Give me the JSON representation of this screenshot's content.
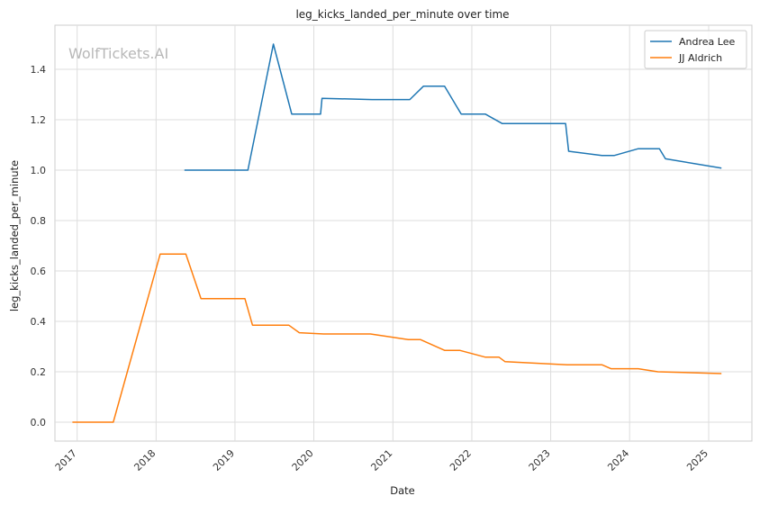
{
  "watermark": "WolfTickets.AI",
  "chart_data": {
    "type": "line",
    "title": "leg_kicks_landed_per_minute over time",
    "xlabel": "Date",
    "ylabel": "leg_kicks_landed_per_minute",
    "x_ticks": [
      "2017",
      "2018",
      "2019",
      "2020",
      "2021",
      "2022",
      "2023",
      "2024",
      "2025"
    ],
    "y_ticks": [
      "0.0",
      "0.2",
      "0.4",
      "0.6",
      "0.8",
      "1.0",
      "1.2",
      "1.4"
    ],
    "xlim": [
      "2016-09-20",
      "2025-07-20"
    ],
    "ylim": [
      -0.075,
      1.575
    ],
    "grid": true,
    "legend_position": "top-right",
    "series": [
      {
        "name": "Andrea Lee",
        "color": "#1f77b4",
        "points": [
          [
            "2018-05-12",
            1.0
          ],
          [
            "2019-03-02",
            1.0
          ],
          [
            "2019-06-28",
            1.5
          ],
          [
            "2019-09-21",
            1.222
          ],
          [
            "2020-02-01",
            1.222
          ],
          [
            "2020-02-08",
            1.285
          ],
          [
            "2020-09-26",
            1.28
          ],
          [
            "2021-03-20",
            1.28
          ],
          [
            "2021-05-22",
            1.333
          ],
          [
            "2021-08-28",
            1.333
          ],
          [
            "2021-11-13",
            1.222
          ],
          [
            "2022-03-05",
            1.222
          ],
          [
            "2022-05-21",
            1.185
          ],
          [
            "2023-03-11",
            1.185
          ],
          [
            "2023-03-25",
            1.075
          ],
          [
            "2023-08-26",
            1.058
          ],
          [
            "2023-10-21",
            1.058
          ],
          [
            "2024-02-10",
            1.085
          ],
          [
            "2024-05-18",
            1.085
          ],
          [
            "2024-06-15",
            1.045
          ],
          [
            "2025-03-01",
            1.008
          ]
        ]
      },
      {
        "name": "JJ Aldrich",
        "color": "#ff7f0e",
        "points": [
          [
            "2016-12-10",
            0.0
          ],
          [
            "2017-06-17",
            0.0
          ],
          [
            "2018-01-20",
            0.667
          ],
          [
            "2018-05-19",
            0.667
          ],
          [
            "2018-07-28",
            0.49
          ],
          [
            "2019-02-16",
            0.49
          ],
          [
            "2019-03-23",
            0.385
          ],
          [
            "2019-09-07",
            0.385
          ],
          [
            "2019-10-26",
            0.355
          ],
          [
            "2020-02-15",
            0.35
          ],
          [
            "2020-09-19",
            0.35
          ],
          [
            "2021-03-13",
            0.328
          ],
          [
            "2021-05-08",
            0.328
          ],
          [
            "2021-08-28",
            0.285
          ],
          [
            "2021-11-06",
            0.285
          ],
          [
            "2022-03-05",
            0.258
          ],
          [
            "2022-05-07",
            0.258
          ],
          [
            "2022-06-04",
            0.24
          ],
          [
            "2023-03-18",
            0.228
          ],
          [
            "2023-08-26",
            0.228
          ],
          [
            "2023-10-07",
            0.212
          ],
          [
            "2024-02-10",
            0.212
          ],
          [
            "2024-05-11",
            0.2
          ],
          [
            "2025-03-01",
            0.193
          ]
        ]
      }
    ]
  }
}
